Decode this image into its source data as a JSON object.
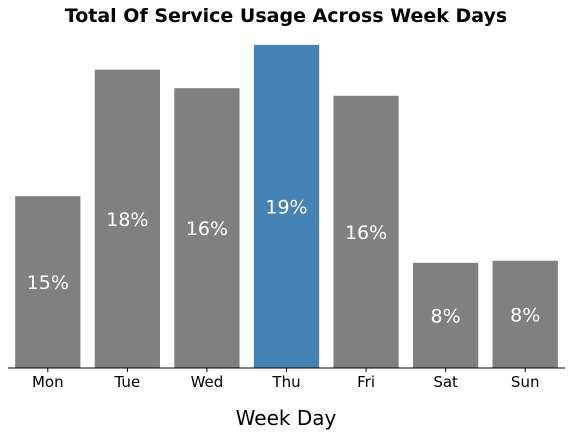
{
  "chart_data": {
    "type": "bar",
    "title": "Total Of Service Usage Across Week Days",
    "xlabel": "Week Day",
    "ylabel": "",
    "categories": [
      "Mon",
      "Tue",
      "Wed",
      "Thu",
      "Fri",
      "Sat",
      "Sun"
    ],
    "values": [
      0.1,
      0.284,
      0.257,
      0.32,
      0.246,
      0.003,
      0.006
    ],
    "data_labels": [
      "15%",
      "18%",
      "16%",
      "19%",
      "16%",
      "8%",
      "8%"
    ],
    "ylim": [
      -0.15,
      0.33
    ],
    "highlight_category": "Thu",
    "colors": {
      "default": "#808080",
      "highlight": "#4682b4"
    },
    "grid": false,
    "y_axis_visible": false
  }
}
